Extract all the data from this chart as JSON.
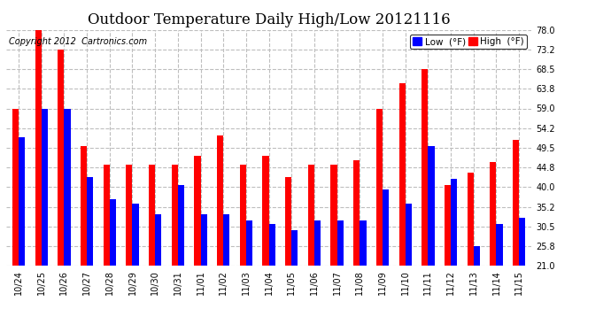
{
  "title": "Outdoor Temperature Daily High/Low 20121116",
  "copyright": "Copyright 2012  Cartronics.com",
  "legend_low": "Low  (°F)",
  "legend_high": "High  (°F)",
  "dates": [
    "10/24",
    "10/25",
    "10/26",
    "10/27",
    "10/28",
    "10/29",
    "10/30",
    "10/31",
    "11/01",
    "11/02",
    "11/03",
    "11/04",
    "11/05",
    "11/06",
    "11/07",
    "11/08",
    "11/09",
    "11/10",
    "11/11",
    "11/12",
    "11/13",
    "11/14",
    "11/15"
  ],
  "highs": [
    59.0,
    78.0,
    73.2,
    50.0,
    45.5,
    45.5,
    45.5,
    45.5,
    47.5,
    52.5,
    45.5,
    47.5,
    42.5,
    45.5,
    45.5,
    46.5,
    59.0,
    65.0,
    68.5,
    40.5,
    43.5,
    46.0,
    51.5
  ],
  "lows": [
    52.0,
    59.0,
    59.0,
    42.5,
    37.0,
    36.0,
    33.5,
    40.5,
    33.5,
    33.5,
    32.0,
    31.0,
    29.5,
    32.0,
    32.0,
    32.0,
    39.5,
    36.0,
    50.0,
    42.0,
    25.8,
    31.0,
    32.5
  ],
  "ylim": [
    21.0,
    78.0
  ],
  "yticks": [
    21.0,
    25.8,
    30.5,
    35.2,
    40.0,
    44.8,
    49.5,
    54.2,
    59.0,
    63.8,
    68.5,
    73.2,
    78.0
  ],
  "bar_color_low": "#0000ff",
  "bar_color_high": "#ff0000",
  "bg_color": "#ffffff",
  "grid_color": "#bebebe",
  "title_fontsize": 12,
  "tick_fontsize": 7,
  "copyright_fontsize": 7,
  "bar_width": 0.28,
  "legend_fontsize": 7.5
}
